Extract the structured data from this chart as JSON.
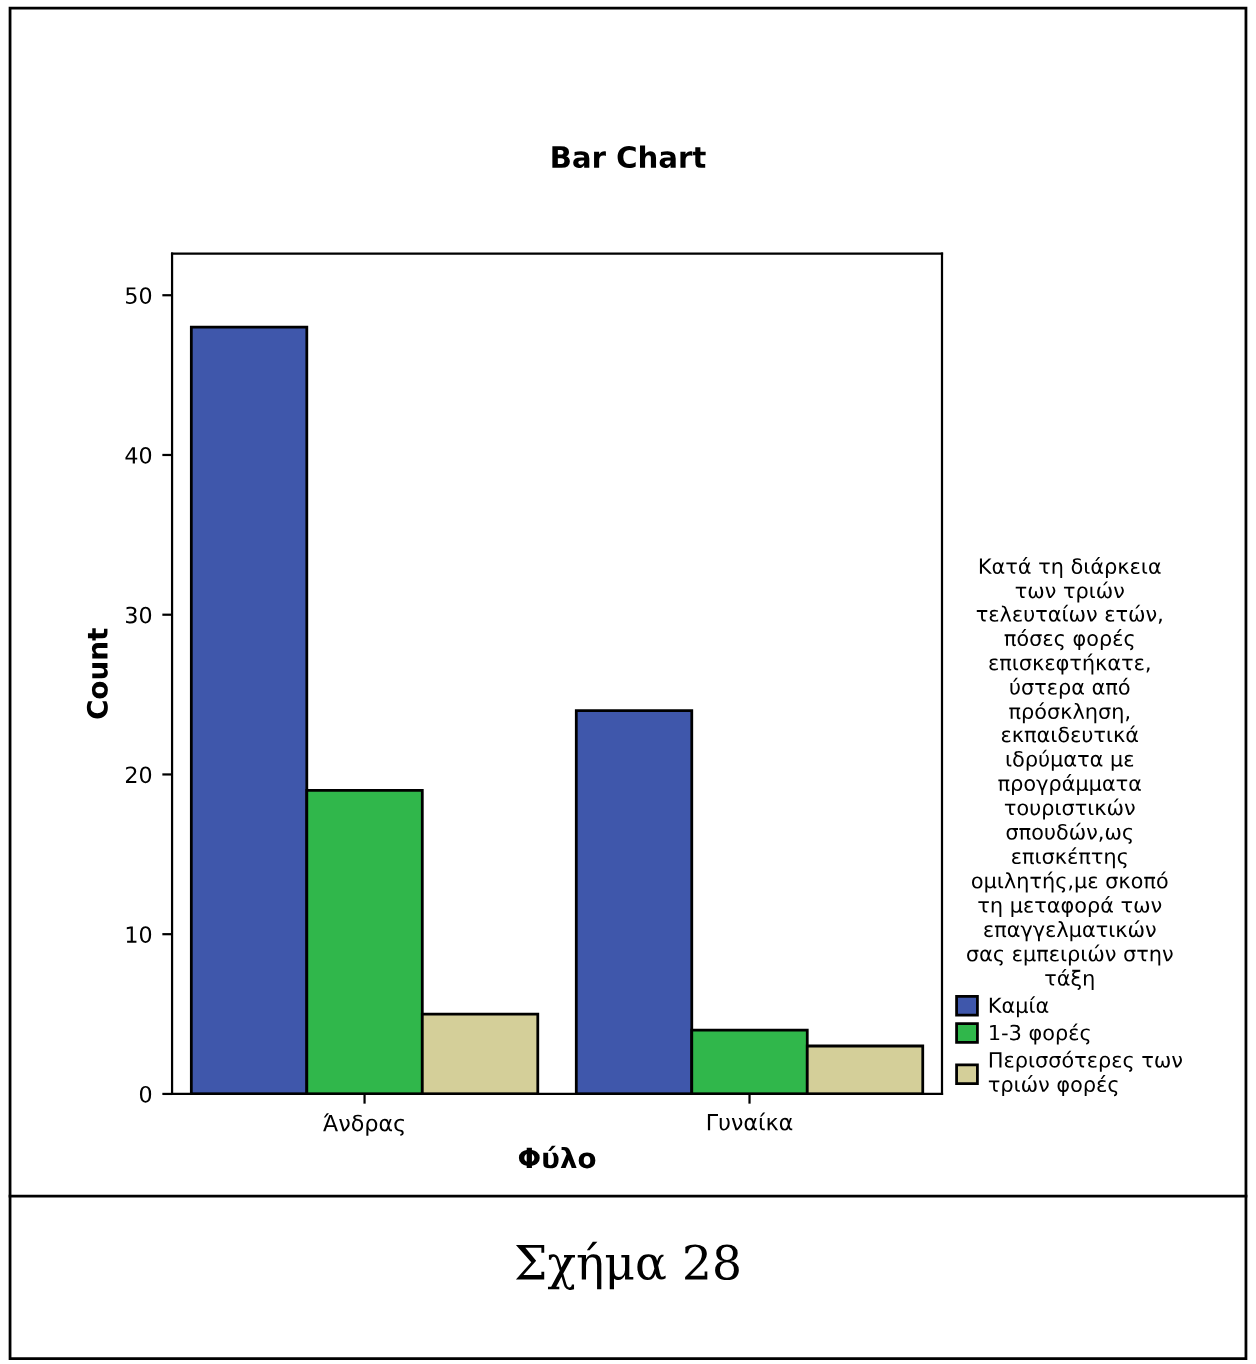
{
  "chart_data": {
    "type": "bar",
    "title": "Bar Chart",
    "xlabel": "Φύλο",
    "ylabel": "Count",
    "categories": [
      "Άνδρας",
      "Γυναίκα"
    ],
    "legend_title": "Κατά τη διάρκεια\nτων τριών\nτελευταίων ετών,\nπόσες φορές\nεπισκεφτήκατε,\nύστερα από\nπρόσκληση,\nεκπαιδευτικά\nιδρύματα με\nπρογράμματα\nτουριστικών\nσπουδών,ως\nεπισκέπτης\nομιλητής,με σκοπό\nτη μεταφορά των\nεπαγγελματικών\nσας εμπειριών στην\nτάξη",
    "series": [
      {
        "name": "Καμία",
        "color": "#3f57ab",
        "values": [
          48,
          24
        ]
      },
      {
        "name": "1-3 φορές",
        "color": "#30b74b",
        "values": [
          19,
          4
        ]
      },
      {
        "name": "Περισσότερες των\nτριών φορές",
        "color": "#d4cf99",
        "values": [
          5,
          3
        ]
      }
    ],
    "ylim": [
      0,
      52.6
    ],
    "yticks": [
      0,
      10,
      20,
      30,
      40,
      50
    ],
    "grid": false,
    "legend": "right",
    "annotations": [
      "Σχήμα 28"
    ]
  }
}
